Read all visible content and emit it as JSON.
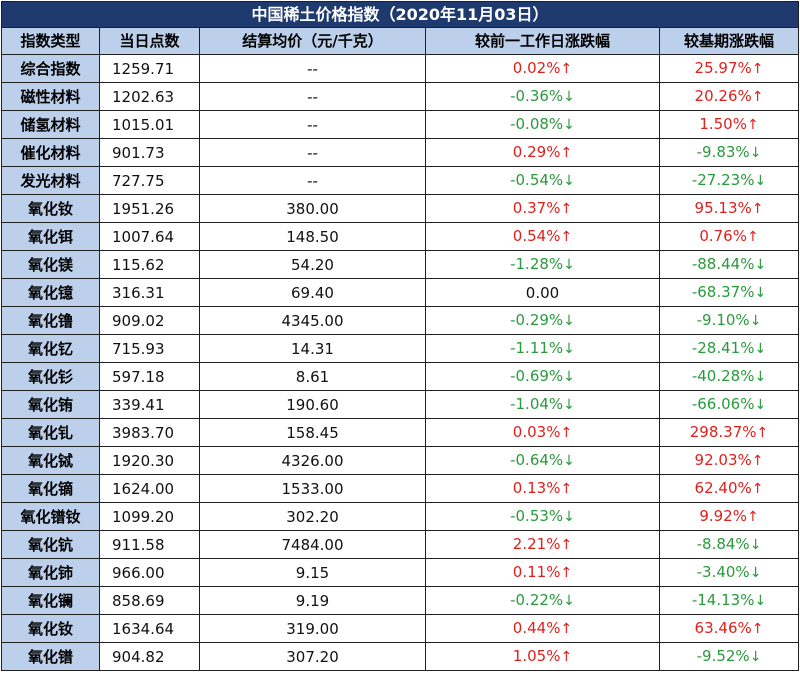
{
  "title": "中国稀土价格指数（2020年11月03日）",
  "headers": [
    "指数类型",
    "当日点数",
    "结算均价（元/千克）",
    "较前一工作日涨跌幅",
    "较基期涨跌幅"
  ],
  "colors": {
    "title_bg": "#1e3a6e",
    "header_bg": "#bcd0ec",
    "up": "#e0201c",
    "down": "#2a9a3c"
  },
  "arrows": {
    "up": "↑",
    "down": "↓"
  },
  "rows": [
    {
      "type": "综合指数",
      "index": "1259.71",
      "price": "--",
      "daily": "0.02%",
      "daily_dir": "up",
      "base": "25.97%",
      "base_dir": "up"
    },
    {
      "type": "磁性材料",
      "index": "1202.63",
      "price": "--",
      "daily": "-0.36%",
      "daily_dir": "down",
      "base": "20.26%",
      "base_dir": "up"
    },
    {
      "type": "储氢材料",
      "index": "1015.01",
      "price": "--",
      "daily": "-0.08%",
      "daily_dir": "down",
      "base": "1.50%",
      "base_dir": "up"
    },
    {
      "type": "催化材料",
      "index": "901.73",
      "price": "--",
      "daily": "0.29%",
      "daily_dir": "up",
      "base": "-9.83%",
      "base_dir": "down"
    },
    {
      "type": "发光材料",
      "index": "727.75",
      "price": "--",
      "daily": "-0.54%",
      "daily_dir": "down",
      "base": "-27.23%",
      "base_dir": "down"
    },
    {
      "type": "氧化钕",
      "index": "1951.26",
      "price": "380.00",
      "daily": "0.37%",
      "daily_dir": "up",
      "base": "95.13%",
      "base_dir": "up"
    },
    {
      "type": "氧化铒",
      "index": "1007.64",
      "price": "148.50",
      "daily": "0.54%",
      "daily_dir": "up",
      "base": "0.76%",
      "base_dir": "up"
    },
    {
      "type": "氧化镁",
      "index": "115.62",
      "price": "54.20",
      "daily": "-1.28%",
      "daily_dir": "down",
      "base": "-88.44%",
      "base_dir": "down"
    },
    {
      "type": "氧化镱",
      "index": "316.31",
      "price": "69.40",
      "daily": "0.00",
      "daily_dir": "flat",
      "base": "-68.37%",
      "base_dir": "down"
    },
    {
      "type": "氧化镥",
      "index": "909.02",
      "price": "4345.00",
      "daily": "-0.29%",
      "daily_dir": "down",
      "base": "-9.10%",
      "base_dir": "down"
    },
    {
      "type": "氧化钇",
      "index": "715.93",
      "price": "14.31",
      "daily": "-1.11%",
      "daily_dir": "down",
      "base": "-28.41%",
      "base_dir": "down"
    },
    {
      "type": "氧化钐",
      "index": "597.18",
      "price": "8.61",
      "daily": "-0.69%",
      "daily_dir": "down",
      "base": "-40.28%",
      "base_dir": "down"
    },
    {
      "type": "氧化铕",
      "index": "339.41",
      "price": "190.60",
      "daily": "-1.04%",
      "daily_dir": "down",
      "base": "-66.06%",
      "base_dir": "down"
    },
    {
      "type": "氧化钆",
      "index": "3983.70",
      "price": "158.45",
      "daily": "0.03%",
      "daily_dir": "up",
      "base": "298.37%",
      "base_dir": "up"
    },
    {
      "type": "氧化铽",
      "index": "1920.30",
      "price": "4326.00",
      "daily": "-0.64%",
      "daily_dir": "down",
      "base": "92.03%",
      "base_dir": "up"
    },
    {
      "type": "氧化镝",
      "index": "1624.00",
      "price": "1533.00",
      "daily": "0.13%",
      "daily_dir": "up",
      "base": "62.40%",
      "base_dir": "up"
    },
    {
      "type": "氧化镨钕",
      "index": "1099.20",
      "price": "302.20",
      "daily": "-0.53%",
      "daily_dir": "down",
      "base": "9.92%",
      "base_dir": "up"
    },
    {
      "type": "氧化钪",
      "index": "911.58",
      "price": "7484.00",
      "daily": "2.21%",
      "daily_dir": "up",
      "base": "-8.84%",
      "base_dir": "down"
    },
    {
      "type": "氧化铈",
      "index": "966.00",
      "price": "9.15",
      "daily": "0.11%",
      "daily_dir": "up",
      "base": "-3.40%",
      "base_dir": "down"
    },
    {
      "type": "氧化镧",
      "index": "858.69",
      "price": "9.19",
      "daily": "-0.22%",
      "daily_dir": "down",
      "base": "-14.13%",
      "base_dir": "down"
    },
    {
      "type": "氧化钕",
      "index": "1634.64",
      "price": "319.00",
      "daily": "0.44%",
      "daily_dir": "up",
      "base": "63.46%",
      "base_dir": "up"
    },
    {
      "type": "氧化镨",
      "index": "904.82",
      "price": "307.20",
      "daily": "1.05%",
      "daily_dir": "up",
      "base": "-9.52%",
      "base_dir": "down"
    }
  ]
}
